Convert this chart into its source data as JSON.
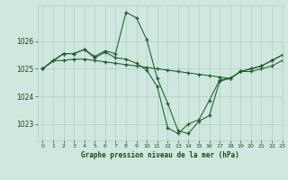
{
  "title": "Graphe pression niveau de la mer (hPa)",
  "background_color": "#cfe8df",
  "grid_color": "#aacfbf",
  "line_color": "#1a5c2a",
  "text_color": "#1a4a1a",
  "xlim": [
    -0.5,
    23
  ],
  "ylim": [
    1022.4,
    1027.3
  ],
  "yticks": [
    1023,
    1024,
    1025,
    1026
  ],
  "xticks": [
    0,
    1,
    2,
    3,
    4,
    5,
    6,
    7,
    8,
    9,
    10,
    11,
    12,
    13,
    14,
    15,
    16,
    17,
    18,
    19,
    20,
    21,
    22,
    23
  ],
  "series1_x": [
    0,
    1,
    2,
    3,
    4,
    5,
    6,
    7,
    8,
    9,
    10,
    11,
    12,
    13,
    14,
    15,
    16,
    17,
    18,
    19,
    20,
    21,
    22,
    23
  ],
  "series1_y": [
    1025.0,
    1025.3,
    1025.3,
    1025.35,
    1025.35,
    1025.3,
    1025.25,
    1025.2,
    1025.15,
    1025.1,
    1025.05,
    1025.0,
    1024.95,
    1024.9,
    1024.85,
    1024.8,
    1024.75,
    1024.7,
    1024.65,
    1024.9,
    1024.9,
    1025.0,
    1025.1,
    1025.3
  ],
  "series2_x": [
    0,
    1,
    2,
    3,
    4,
    5,
    6,
    7,
    8,
    9,
    10,
    11,
    12,
    13,
    14,
    15,
    16,
    17,
    18,
    19,
    20,
    21,
    22,
    23
  ],
  "series2_y": [
    1025.0,
    1025.3,
    1025.55,
    1025.55,
    1025.7,
    1025.45,
    1025.65,
    1025.55,
    1027.05,
    1026.85,
    1026.05,
    1024.65,
    1023.75,
    1022.75,
    1022.65,
    1023.1,
    1023.3,
    1024.55,
    1024.65,
    1024.9,
    1025.0,
    1025.1,
    1025.3,
    1025.5
  ],
  "series3_x": [
    0,
    2,
    3,
    4,
    5,
    6,
    7,
    8,
    9,
    10,
    11,
    12,
    13,
    14,
    15,
    16,
    17,
    18,
    19,
    20,
    21,
    22,
    23
  ],
  "series3_y": [
    1025.0,
    1025.55,
    1025.55,
    1025.7,
    1025.4,
    1025.6,
    1025.4,
    1025.35,
    1025.2,
    1024.95,
    1024.35,
    1022.85,
    1022.65,
    1023.0,
    1023.15,
    1023.85,
    1024.6,
    1024.65,
    1024.9,
    1025.0,
    1025.1,
    1025.3,
    1025.5
  ]
}
